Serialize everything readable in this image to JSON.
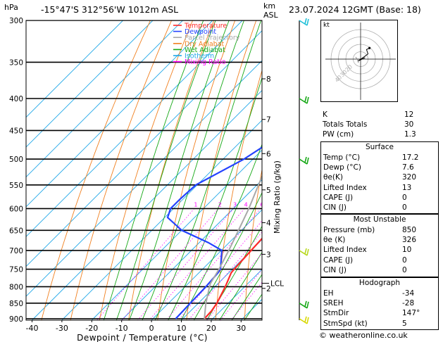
{
  "header": {
    "pressure_unit": "hPa",
    "location": "-15°47'S  312°56'W  1012m  ASL",
    "height_unit": "km\nASL",
    "height_unit_line1": "km",
    "height_unit_line2": "ASL",
    "datetime": "23.07.2024  12GMT  (Base: 18)"
  },
  "chart_data": {
    "type": "line",
    "title": "",
    "xlabel": "Dewpoint / Temperature (°C)",
    "ylabel": "hPa",
    "right_label": "Mixing Ratio (g/kg)",
    "x_ticks": [
      -40,
      -30,
      -20,
      -10,
      0,
      10,
      20,
      30
    ],
    "xlim": [
      -42,
      37
    ],
    "p_ticks": [
      300,
      350,
      400,
      450,
      500,
      550,
      600,
      650,
      700,
      750,
      800,
      850,
      900
    ],
    "ylim": [
      300,
      905
    ],
    "y_scale": "log",
    "skew": "45°",
    "km_ticks": [
      {
        "label": "8",
        "p": 372
      },
      {
        "label": "7",
        "p": 432
      },
      {
        "label": "6",
        "p": 490
      },
      {
        "label": "5",
        "p": 560
      },
      {
        "label": "4",
        "p": 632
      },
      {
        "label": "3",
        "p": 710
      },
      {
        "label": "2",
        "p": 805
      }
    ],
    "lcl": {
      "label": "LCL",
      "p": 790
    },
    "mixing_ratio_labels": [
      "1",
      "2",
      "3",
      "4",
      "6",
      "8",
      "10",
      "15",
      "20",
      "25"
    ],
    "legend": [
      {
        "name": "Temperature",
        "color": "#ff2a2a"
      },
      {
        "name": "Dewpoint",
        "color": "#2442ff"
      },
      {
        "name": "Parcel Trajectory",
        "color": "#a8a8a8"
      },
      {
        "name": "Dry Adiabat",
        "color": "#f08020"
      },
      {
        "name": "Wet Adiabat",
        "color": "#16a816"
      },
      {
        "name": "Isotherm",
        "color": "#20a8e8"
      },
      {
        "name": "Mixing Ratio",
        "color": "#ff00ff"
      }
    ],
    "legend_position": "top-left",
    "series": [
      {
        "name": "Temperature",
        "color": "#ff2a2a",
        "points": [
          [
            900,
            17.2
          ],
          [
            875,
            17.0
          ],
          [
            850,
            16.2
          ],
          [
            800,
            13.5
          ],
          [
            760,
            10.8
          ],
          [
            750,
            10.6
          ],
          [
            700,
            10.0
          ],
          [
            650,
            9.4
          ],
          [
            620,
            7.0
          ],
          [
            600,
            6.0
          ],
          [
            550,
            4.2
          ],
          [
            520,
            2.2
          ],
          [
            500,
            0.4
          ],
          [
            470,
            -3.2
          ],
          [
            450,
            -6.2
          ],
          [
            430,
            -8.2
          ],
          [
            400,
            -11.5
          ],
          [
            350,
            -17.8
          ],
          [
            330,
            -20.0
          ],
          [
            300,
            -23.0
          ]
        ]
      },
      {
        "name": "Dewpoint",
        "color": "#2442ff",
        "points": [
          [
            900,
            7.6
          ],
          [
            850,
            7.3
          ],
          [
            800,
            7.0
          ],
          [
            760,
            6.4
          ],
          [
            750,
            6.0
          ],
          [
            700,
            0.2
          ],
          [
            680,
            -7.0
          ],
          [
            650,
            -20.0
          ],
          [
            620,
            -29.0
          ],
          [
            600,
            -31.0
          ],
          [
            580,
            -31.0
          ],
          [
            550,
            -30.5
          ],
          [
            500,
            -23.0
          ],
          [
            480,
            -21.0
          ],
          [
            450,
            -20.5
          ],
          [
            430,
            -22.0
          ],
          [
            400,
            -26.0
          ],
          [
            350,
            -32.0
          ],
          [
            320,
            -30.0
          ],
          [
            300,
            -28.0
          ]
        ]
      },
      {
        "name": "Parcel Trajectory",
        "color": "#a8a8a8",
        "points": [
          [
            900,
            17.2
          ],
          [
            850,
            12.5
          ],
          [
            800,
            8.2
          ],
          [
            790,
            7.4
          ],
          [
            750,
            5.5
          ],
          [
            700,
            2.5
          ],
          [
            650,
            -1.0
          ],
          [
            600,
            -4.8
          ],
          [
            550,
            -9.5
          ],
          [
            500,
            -14.6
          ],
          [
            450,
            -20.8
          ],
          [
            400,
            -28.0
          ],
          [
            350,
            -37.0
          ],
          [
            300,
            -47.5
          ]
        ]
      }
    ],
    "wind_barbs": [
      {
        "p": 300,
        "color": "#20c0d8"
      },
      {
        "p": 400,
        "color": "#16a816"
      },
      {
        "p": 500,
        "color": "#16a816"
      },
      {
        "p": 700,
        "color": "#b8d820"
      },
      {
        "p": 850,
        "color": "#16a816"
      },
      {
        "p": 900,
        "color": "#d8d800"
      }
    ]
  },
  "hodograph": {
    "unit": "kt",
    "ring_labels": [
      "40",
      "30",
      "20"
    ],
    "trace": [
      [
        0,
        0
      ],
      [
        4,
        1
      ],
      [
        6,
        2
      ],
      [
        -4,
        -3
      ],
      [
        6,
        4
      ],
      [
        10,
        7
      ],
      [
        8,
        13
      ],
      [
        12,
        15
      ]
    ],
    "storm_motion": [
      -3,
      -5
    ]
  },
  "indices": [
    {
      "label": "K",
      "value": "12"
    },
    {
      "label": "Totals Totals",
      "value": "30"
    },
    {
      "label": "PW (cm)",
      "value": "1.3"
    }
  ],
  "surface": {
    "title": "Surface",
    "rows": [
      {
        "label": "Temp (°C)",
        "value": "17.2"
      },
      {
        "label": "Dewp (°C)",
        "value": "7.6"
      },
      {
        "label": "θe(K)",
        "value": "320"
      },
      {
        "label": "Lifted Index",
        "value": "13"
      },
      {
        "label": "CAPE (J)",
        "value": "0"
      },
      {
        "label": "CIN (J)",
        "value": "0"
      }
    ]
  },
  "most_unstable": {
    "title": "Most Unstable",
    "rows": [
      {
        "label": "Pressure (mb)",
        "value": "850"
      },
      {
        "label": "θe (K)",
        "value": "326"
      },
      {
        "label": "Lifted Index",
        "value": "10"
      },
      {
        "label": "CAPE (J)",
        "value": "0"
      },
      {
        "label": "CIN (J)",
        "value": "0"
      }
    ]
  },
  "hodograph_table": {
    "title": "Hodograph",
    "rows": [
      {
        "label": "EH",
        "value": "-34"
      },
      {
        "label": "SREH",
        "value": "-28"
      },
      {
        "label": "StmDir",
        "value": "147°"
      },
      {
        "label": "StmSpd (kt)",
        "value": "5"
      }
    ]
  },
  "footer": {
    "copyright": "© weatheronline.co.uk"
  }
}
